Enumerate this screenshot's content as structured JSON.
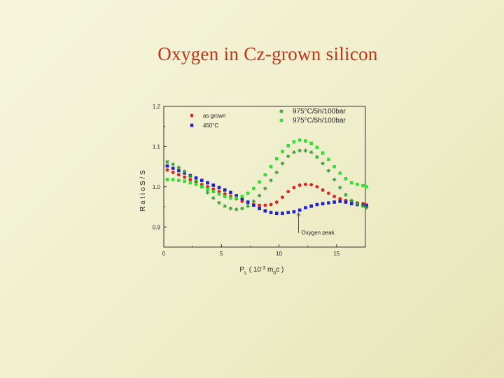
{
  "slide": {
    "title": "Oxygen in Cz-grown silicon"
  },
  "chart_data": {
    "type": "scatter",
    "x_axis": {
      "label": "P",
      "label_sub": "L",
      "label_rest": " ( 10",
      "label_sup": "-3",
      "label_tail": " m",
      "label_sub2": "0",
      "label_end": "c )",
      "ticks": [
        "0",
        "5",
        "10",
        "15"
      ],
      "range": [
        0,
        17.5
      ]
    },
    "y_axis": {
      "label": "R a t i o S / S",
      "ticks": [
        "0.9",
        "1.0",
        "1.1",
        "1.2"
      ],
      "range": [
        0.85,
        1.2
      ]
    },
    "legend": [
      {
        "name": "as grown",
        "color": "#e02020",
        "marker": "circle"
      },
      {
        "name": "450°C",
        "color": "#2020d0",
        "marker": "square"
      },
      {
        "name": "975°C/5h/100bar",
        "color": "#2e9e2e",
        "marker": "star"
      },
      {
        "name": "975°C/5h/100bar",
        "color": "#33dd33",
        "marker": "square"
      }
    ],
    "annotation": {
      "text": "Oxygen peak",
      "x": 11.7,
      "y": 0.905
    },
    "series": [
      {
        "name": "as grown",
        "color": "#e02020",
        "marker": "circle",
        "x": [
          0.3,
          0.8,
          1.3,
          1.8,
          2.3,
          2.8,
          3.3,
          3.8,
          4.3,
          4.8,
          5.3,
          5.8,
          6.3,
          6.8,
          7.3,
          7.8,
          8.3,
          8.8,
          9.3,
          9.8,
          10.3,
          10.8,
          11.3,
          11.8,
          12.3,
          12.8,
          13.3,
          13.8,
          14.3,
          14.8,
          15.3,
          15.8,
          16.3,
          16.8,
          17.3,
          17.6
        ],
        "y": [
          1.042,
          1.036,
          1.03,
          1.024,
          1.018,
          1.012,
          1.006,
          1.0,
          0.994,
          0.988,
          0.982,
          0.976,
          0.97,
          0.964,
          0.96,
          0.956,
          0.954,
          0.954,
          0.956,
          0.962,
          0.974,
          0.988,
          0.998,
          1.004,
          1.006,
          1.005,
          1.0,
          0.992,
          0.984,
          0.976,
          0.97,
          0.966,
          0.962,
          0.96,
          0.958,
          0.955
        ]
      },
      {
        "name": "450°C",
        "color": "#2020d0",
        "marker": "square",
        "x": [
          0.3,
          0.8,
          1.3,
          1.8,
          2.3,
          2.8,
          3.3,
          3.8,
          4.3,
          4.8,
          5.3,
          5.8,
          6.3,
          6.8,
          7.3,
          7.8,
          8.3,
          8.8,
          9.3,
          9.8,
          10.3,
          10.8,
          11.3,
          11.8,
          12.3,
          12.8,
          13.3,
          13.8,
          14.3,
          14.8,
          15.3,
          15.8,
          16.3,
          16.8,
          17.3,
          17.6
        ],
        "y": [
          1.052,
          1.046,
          1.04,
          1.034,
          1.028,
          1.022,
          1.016,
          1.01,
          1.004,
          0.998,
          0.992,
          0.986,
          0.978,
          0.97,
          0.962,
          0.954,
          0.946,
          0.94,
          0.936,
          0.934,
          0.934,
          0.936,
          0.938,
          0.942,
          0.948,
          0.952,
          0.956,
          0.958,
          0.96,
          0.962,
          0.964,
          0.962,
          0.958,
          0.956,
          0.954,
          0.952
        ]
      },
      {
        "name": "975°C/5h/100bar",
        "color": "#2e9e2e",
        "marker": "star",
        "x": [
          0.3,
          0.8,
          1.3,
          1.8,
          2.3,
          2.8,
          3.3,
          3.8,
          4.3,
          4.8,
          5.3,
          5.8,
          6.3,
          6.8,
          7.3,
          7.8,
          8.3,
          8.8,
          9.3,
          9.8,
          10.3,
          10.8,
          11.3,
          11.8,
          12.3,
          12.8,
          13.3,
          13.8,
          14.3,
          14.8,
          15.3,
          15.8,
          16.3,
          16.8,
          17.3,
          17.6
        ],
        "y": [
          1.062,
          1.056,
          1.048,
          1.038,
          1.026,
          1.014,
          1.0,
          0.986,
          0.972,
          0.96,
          0.952,
          0.946,
          0.944,
          0.946,
          0.952,
          0.964,
          0.978,
          0.996,
          1.016,
          1.036,
          1.058,
          1.076,
          1.086,
          1.09,
          1.09,
          1.086,
          1.074,
          1.058,
          1.04,
          1.018,
          0.998,
          0.98,
          0.966,
          0.958,
          0.952,
          0.948
        ]
      },
      {
        "name": "975°C/5h/100bar",
        "color": "#33dd33",
        "marker": "square",
        "x": [
          0.3,
          0.8,
          1.3,
          1.8,
          2.3,
          2.8,
          3.3,
          3.8,
          4.3,
          4.8,
          5.3,
          5.8,
          6.3,
          6.8,
          7.3,
          7.8,
          8.3,
          8.8,
          9.3,
          9.8,
          10.3,
          10.8,
          11.3,
          11.8,
          12.3,
          12.8,
          13.3,
          13.8,
          14.3,
          14.8,
          15.3,
          15.8,
          16.3,
          16.8,
          17.3,
          17.6
        ],
        "y": [
          1.018,
          1.018,
          1.016,
          1.014,
          1.01,
          1.006,
          1.0,
          0.994,
          0.988,
          0.982,
          0.976,
          0.972,
          0.972,
          0.976,
          0.984,
          0.996,
          1.012,
          1.03,
          1.05,
          1.07,
          1.088,
          1.102,
          1.112,
          1.116,
          1.114,
          1.108,
          1.098,
          1.084,
          1.068,
          1.05,
          1.034,
          1.02,
          1.01,
          1.006,
          1.003,
          1.0
        ]
      }
    ]
  }
}
